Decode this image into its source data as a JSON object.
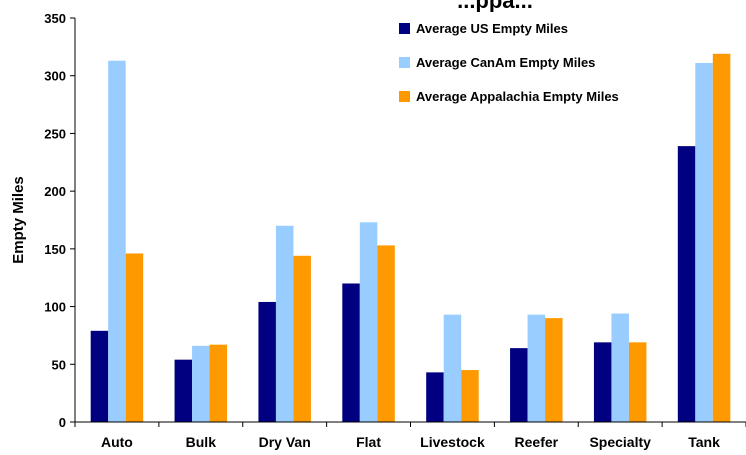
{
  "chart_data": {
    "type": "bar",
    "title": "...ppa...",
    "ylabel": "Empty Miles",
    "xlabel": "",
    "categories": [
      "Auto",
      "Bulk",
      "Dry Van",
      "Flat",
      "Livestock",
      "Reefer",
      "Specialty",
      "Tank"
    ],
    "ylim": [
      0,
      350
    ],
    "yticks": [
      0,
      50,
      100,
      150,
      200,
      250,
      300,
      350
    ],
    "grid": false,
    "legend_position": "top-right",
    "series": [
      {
        "name": "Average US Empty Miles",
        "color": "#000080",
        "values": [
          79,
          54,
          104,
          120,
          43,
          64,
          69,
          239
        ]
      },
      {
        "name": "Average CanAm Empty Miles",
        "color": "#99ccff",
        "values": [
          313,
          66,
          170,
          173,
          93,
          93,
          94,
          311
        ]
      },
      {
        "name": "Average Appalachia Empty Miles",
        "color": "#ff9900",
        "values": [
          146,
          67,
          144,
          153,
          45,
          90,
          69,
          319
        ]
      }
    ]
  }
}
